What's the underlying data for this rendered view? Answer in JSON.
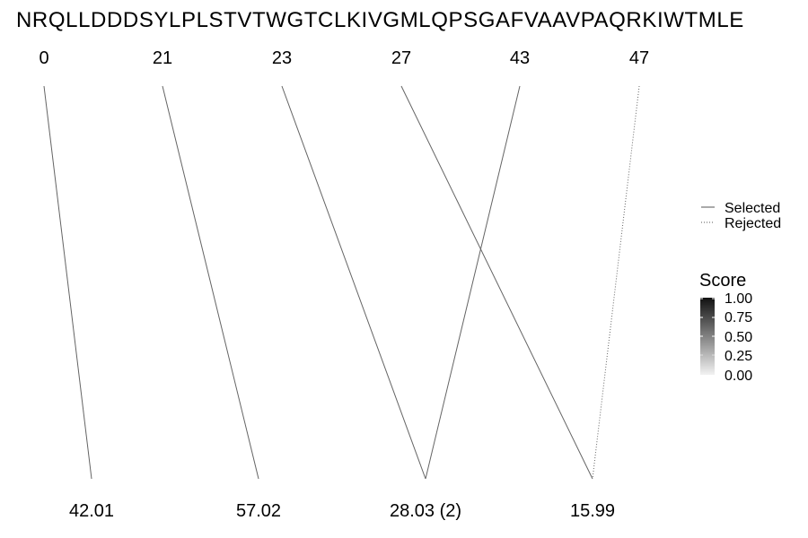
{
  "sequence": "NRQLLDDDSYLPLSTVTWGTCLKIVGMLQPSGAFVAAVPAQRKIWTMLE",
  "top_labels": [
    "0",
    "21",
    "23",
    "27",
    "43",
    "47"
  ],
  "bottom_labels": [
    "42.01",
    "57.02",
    "28.03 (2)",
    "15.99"
  ],
  "links": [
    {
      "from": "0",
      "to": "42.01",
      "status": "Selected",
      "score": 1.0
    },
    {
      "from": "21",
      "to": "57.02",
      "status": "Selected",
      "score": 1.0
    },
    {
      "from": "23",
      "to": "28.03 (2)",
      "status": "Selected",
      "score": 1.0
    },
    {
      "from": "27",
      "to": "15.99",
      "status": "Selected",
      "score": 1.0
    },
    {
      "from": "43",
      "to": "28.03 (2)",
      "status": "Selected",
      "score": 1.0
    },
    {
      "from": "47",
      "to": "15.99",
      "status": "Rejected",
      "score": 1.0
    }
  ],
  "legend": {
    "linetype_items": [
      "Selected",
      "Rejected"
    ],
    "score_title": "Score",
    "score_ticks": [
      "1.00",
      "0.75",
      "0.50",
      "0.25",
      "0.00"
    ],
    "score_colors": {
      "high": "#111111",
      "low": "#f2f2f2"
    }
  }
}
